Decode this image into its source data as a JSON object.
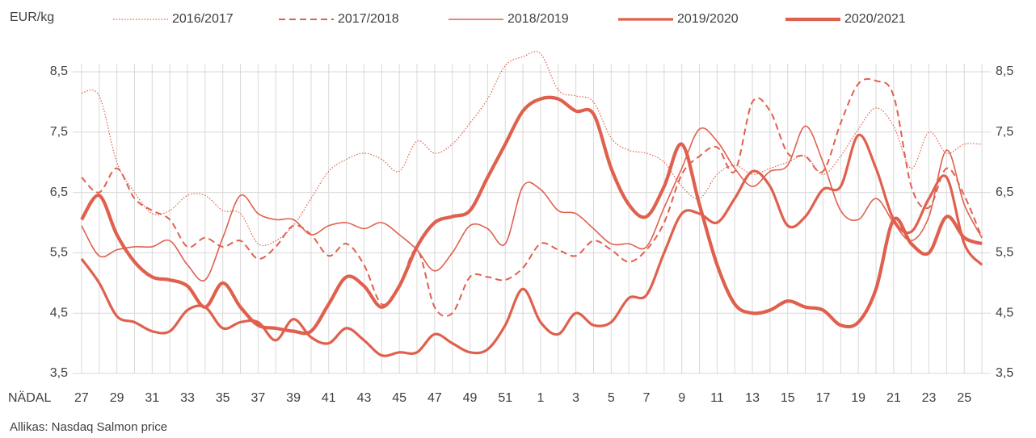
{
  "chart_data": {
    "type": "line",
    "y_label": "EUR/kg",
    "x_label": "NÄDAL",
    "source": "Allikas: Nasdaq Salmon price",
    "categories": [
      "27",
      null,
      "29",
      null,
      "31",
      null,
      "33",
      null,
      "35",
      null,
      "37",
      null,
      "39",
      null,
      "41",
      null,
      "43",
      null,
      "45",
      null,
      "47",
      null,
      "49",
      null,
      "51",
      null,
      "1",
      null,
      "3",
      null,
      "5",
      null,
      "7",
      null,
      "9",
      null,
      "11",
      null,
      "13",
      null,
      "15",
      null,
      "17",
      null,
      "19",
      null,
      "21",
      null,
      "23",
      null,
      "25",
      null
    ],
    "ylim": [
      3.5,
      8.5
    ],
    "yticks": [
      {
        "value": 3.5,
        "label": "3,5"
      },
      {
        "value": 4.5,
        "label": "4,5"
      },
      {
        "value": 5.5,
        "label": "5,5"
      },
      {
        "value": 6.5,
        "label": "6,5"
      },
      {
        "value": 7.5,
        "label": "7,5"
      },
      {
        "value": 8.5,
        "label": "8,5"
      }
    ],
    "grid": true,
    "legend": "top",
    "series": [
      {
        "name": "2016/2017",
        "color": "#e0604e",
        "line_style": "dotted",
        "values": [
          8.15,
          8.1,
          7.0,
          6.5,
          6.15,
          6.2,
          6.45,
          6.45,
          6.2,
          6.15,
          5.65,
          5.7,
          5.95,
          6.4,
          6.85,
          7.05,
          7.15,
          7.05,
          6.85,
          7.35,
          7.15,
          7.3,
          7.65,
          8.05,
          8.6,
          8.75,
          8.8,
          8.2,
          8.1,
          8.0,
          7.4,
          7.2,
          7.15,
          7.0,
          6.6,
          6.4,
          6.8,
          6.95,
          6.8,
          6.9,
          7.0,
          7.1,
          6.8,
          7.1,
          7.55,
          7.9,
          7.6,
          6.9,
          7.5,
          7.15,
          7.3,
          7.3
        ]
      },
      {
        "name": "2017/2018",
        "color": "#e0604e",
        "line_style": "dashed",
        "values": [
          6.75,
          6.5,
          6.9,
          6.4,
          6.2,
          6.05,
          5.6,
          5.75,
          5.6,
          5.7,
          5.4,
          5.6,
          5.95,
          5.8,
          5.45,
          5.65,
          5.3,
          4.65,
          4.95,
          5.55,
          4.6,
          4.5,
          5.1,
          5.1,
          5.05,
          5.25,
          5.65,
          5.55,
          5.45,
          5.7,
          5.55,
          5.35,
          5.55,
          6.0,
          6.8,
          7.1,
          7.25,
          6.85,
          8.0,
          7.85,
          7.15,
          7.1,
          6.85,
          7.65,
          8.3,
          8.35,
          8.1,
          6.6,
          6.25,
          6.9,
          6.45,
          5.75
        ]
      },
      {
        "name": "2018/2019",
        "color": "#e0604e",
        "line_style": "solid",
        "values": [
          5.95,
          5.45,
          5.55,
          5.6,
          5.6,
          5.7,
          5.3,
          5.05,
          5.75,
          6.45,
          6.15,
          6.05,
          6.05,
          5.8,
          5.95,
          6.0,
          5.9,
          6.0,
          5.8,
          5.55,
          5.2,
          5.5,
          5.95,
          5.9,
          5.65,
          6.6,
          6.55,
          6.2,
          6.15,
          5.9,
          5.65,
          5.65,
          5.6,
          6.25,
          6.9,
          7.55,
          7.35,
          6.9,
          6.6,
          6.85,
          6.95,
          7.6,
          7.0,
          6.2,
          6.05,
          6.4,
          6.0,
          5.7,
          6.1,
          7.2,
          6.3,
          5.75
        ]
      },
      {
        "name": "2019/2020",
        "color": "#e0604e",
        "line_style": "bold",
        "values": [
          5.4,
          5.0,
          4.45,
          4.35,
          4.2,
          4.2,
          4.55,
          4.6,
          4.25,
          4.35,
          4.35,
          4.05,
          4.4,
          4.1,
          4.0,
          4.25,
          4.05,
          3.8,
          3.85,
          3.85,
          4.15,
          4.0,
          3.85,
          3.9,
          4.3,
          4.9,
          4.35,
          4.15,
          4.5,
          4.3,
          4.35,
          4.75,
          4.8,
          5.5,
          6.15,
          6.15,
          6.0,
          6.4,
          6.85,
          6.6,
          5.95,
          6.1,
          6.55,
          6.6,
          7.45,
          6.9,
          6.05,
          5.85,
          6.4,
          6.75,
          5.65,
          5.3
        ]
      },
      {
        "name": "2020/2021",
        "color": "#e0604e",
        "line_style": "heavy",
        "values": [
          6.05,
          6.45,
          5.8,
          5.35,
          5.1,
          5.05,
          4.95,
          4.6,
          5.0,
          4.6,
          4.3,
          4.25,
          4.2,
          4.2,
          4.65,
          5.1,
          4.95,
          4.6,
          4.95,
          5.6,
          6.0,
          6.1,
          6.2,
          6.75,
          7.3,
          7.85,
          8.05,
          8.05,
          7.85,
          7.8,
          6.9,
          6.3,
          6.1,
          6.6,
          7.3,
          6.3,
          5.3,
          4.65,
          4.5,
          4.55,
          4.7,
          4.6,
          4.55,
          4.3,
          4.35,
          4.9,
          6.05,
          5.65,
          5.5,
          6.1,
          5.75,
          5.65
        ]
      }
    ]
  }
}
